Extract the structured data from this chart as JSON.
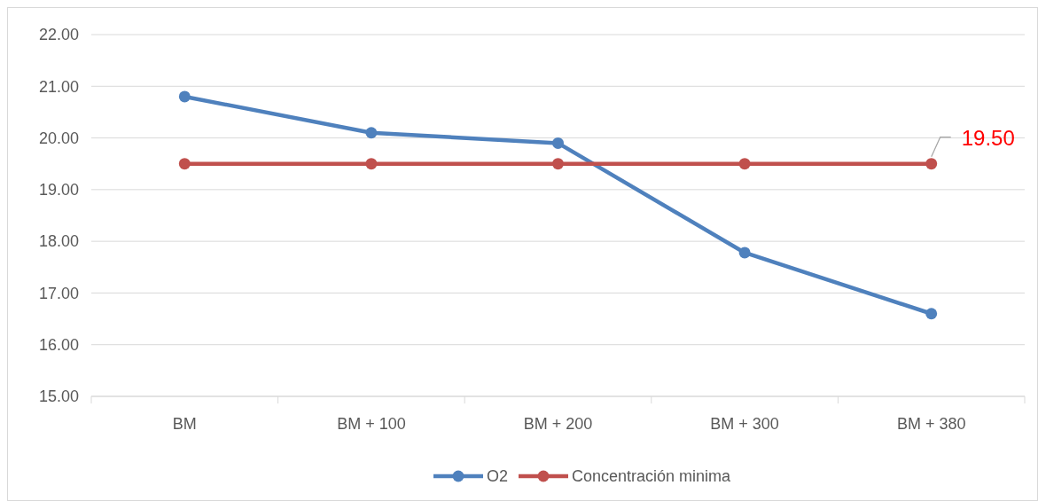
{
  "chart_data": {
    "type": "line",
    "categories": [
      "BM",
      "BM + 100",
      "BM + 200",
      "BM + 300",
      "BM + 380"
    ],
    "series": [
      {
        "name": "O2",
        "color": "#4f81bd",
        "values": [
          20.8,
          20.1,
          19.9,
          17.78,
          16.6
        ]
      },
      {
        "name": "Concentración minima",
        "color": "#c0504d",
        "values": [
          19.5,
          19.5,
          19.5,
          19.5,
          19.5
        ],
        "value_labels": [
          null,
          null,
          null,
          null,
          "19.50"
        ]
      }
    ],
    "ylim": [
      15,
      22
    ],
    "yticks": [
      {
        "value": 15,
        "label": "15.00"
      },
      {
        "value": 16,
        "label": "16.00"
      },
      {
        "value": 17,
        "label": "17.00"
      },
      {
        "value": 18,
        "label": "18.00"
      },
      {
        "value": 19,
        "label": "19.00"
      },
      {
        "value": 20,
        "label": "20.00"
      },
      {
        "value": 21,
        "label": "21.00"
      },
      {
        "value": 22,
        "label": "22.00"
      }
    ],
    "grid": "y",
    "legend": "bottom",
    "marker": "circle",
    "line_style": "solid"
  }
}
